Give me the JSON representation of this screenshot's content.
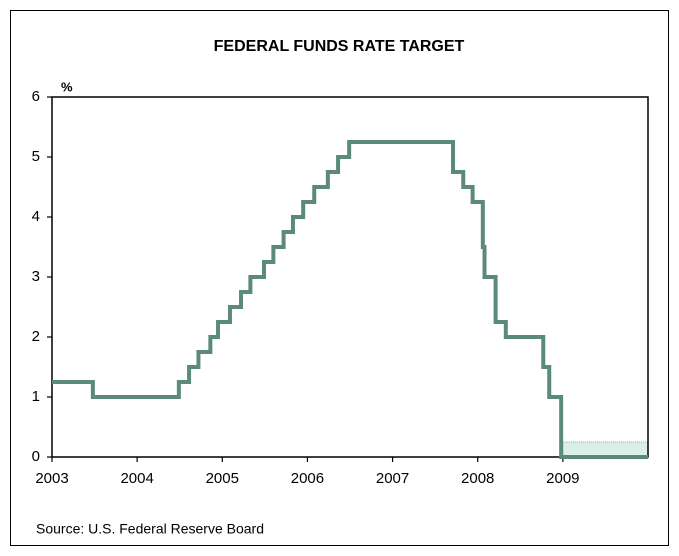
{
  "chart_data": {
    "type": "line",
    "title": "FEDERAL FUNDS RATE TARGET",
    "y_label": "%",
    "source": "Source: U.S. Federal Reserve Board",
    "xlim": [
      2003,
      2010
    ],
    "xticks": [
      2003,
      2004,
      2005,
      2006,
      2007,
      2008,
      2009
    ],
    "ylim": [
      0,
      6
    ],
    "yticks": [
      0,
      1,
      2,
      3,
      4,
      5,
      6
    ],
    "band": {
      "x": [
        2009,
        2010
      ],
      "y": [
        0,
        0.25
      ],
      "color": "#dcefe6"
    },
    "series": [
      {
        "name": "Federal funds rate target",
        "color": "#5b8a78",
        "x": [
          2003,
          2003.48,
          2003.48,
          2004.49,
          2004.49,
          2004.61,
          2004.61,
          2004.72,
          2004.72,
          2004.86,
          2004.86,
          2004.95,
          2004.95,
          2005.09,
          2005.09,
          2005.22,
          2005.22,
          2005.33,
          2005.33,
          2005.49,
          2005.49,
          2005.6,
          2005.6,
          2005.72,
          2005.72,
          2005.83,
          2005.83,
          2005.95,
          2005.95,
          2006.08,
          2006.08,
          2006.24,
          2006.24,
          2006.36,
          2006.36,
          2006.49,
          2006.49,
          2007.71,
          2007.71,
          2007.83,
          2007.83,
          2007.94,
          2007.94,
          2008.06,
          2008.06,
          2008.08,
          2008.08,
          2008.21,
          2008.21,
          2008.33,
          2008.33,
          2008.77,
          2008.77,
          2008.84,
          2008.84,
          2008.98,
          2008.98,
          2010
        ],
        "values": [
          1.25,
          1.25,
          1,
          1,
          1.25,
          1.25,
          1.5,
          1.5,
          1.75,
          1.75,
          2,
          2,
          2.25,
          2.25,
          2.5,
          2.5,
          2.75,
          2.75,
          3,
          3,
          3.25,
          3.25,
          3.5,
          3.5,
          3.75,
          3.75,
          4,
          4,
          4.25,
          4.25,
          4.5,
          4.5,
          4.75,
          4.75,
          5,
          5,
          5.25,
          5.25,
          4.75,
          4.75,
          4.5,
          4.5,
          4.25,
          4.25,
          3.5,
          3.5,
          3,
          3,
          2.25,
          2.25,
          2,
          2,
          1.5,
          1.5,
          1,
          1,
          0,
          0
        ]
      }
    ]
  }
}
